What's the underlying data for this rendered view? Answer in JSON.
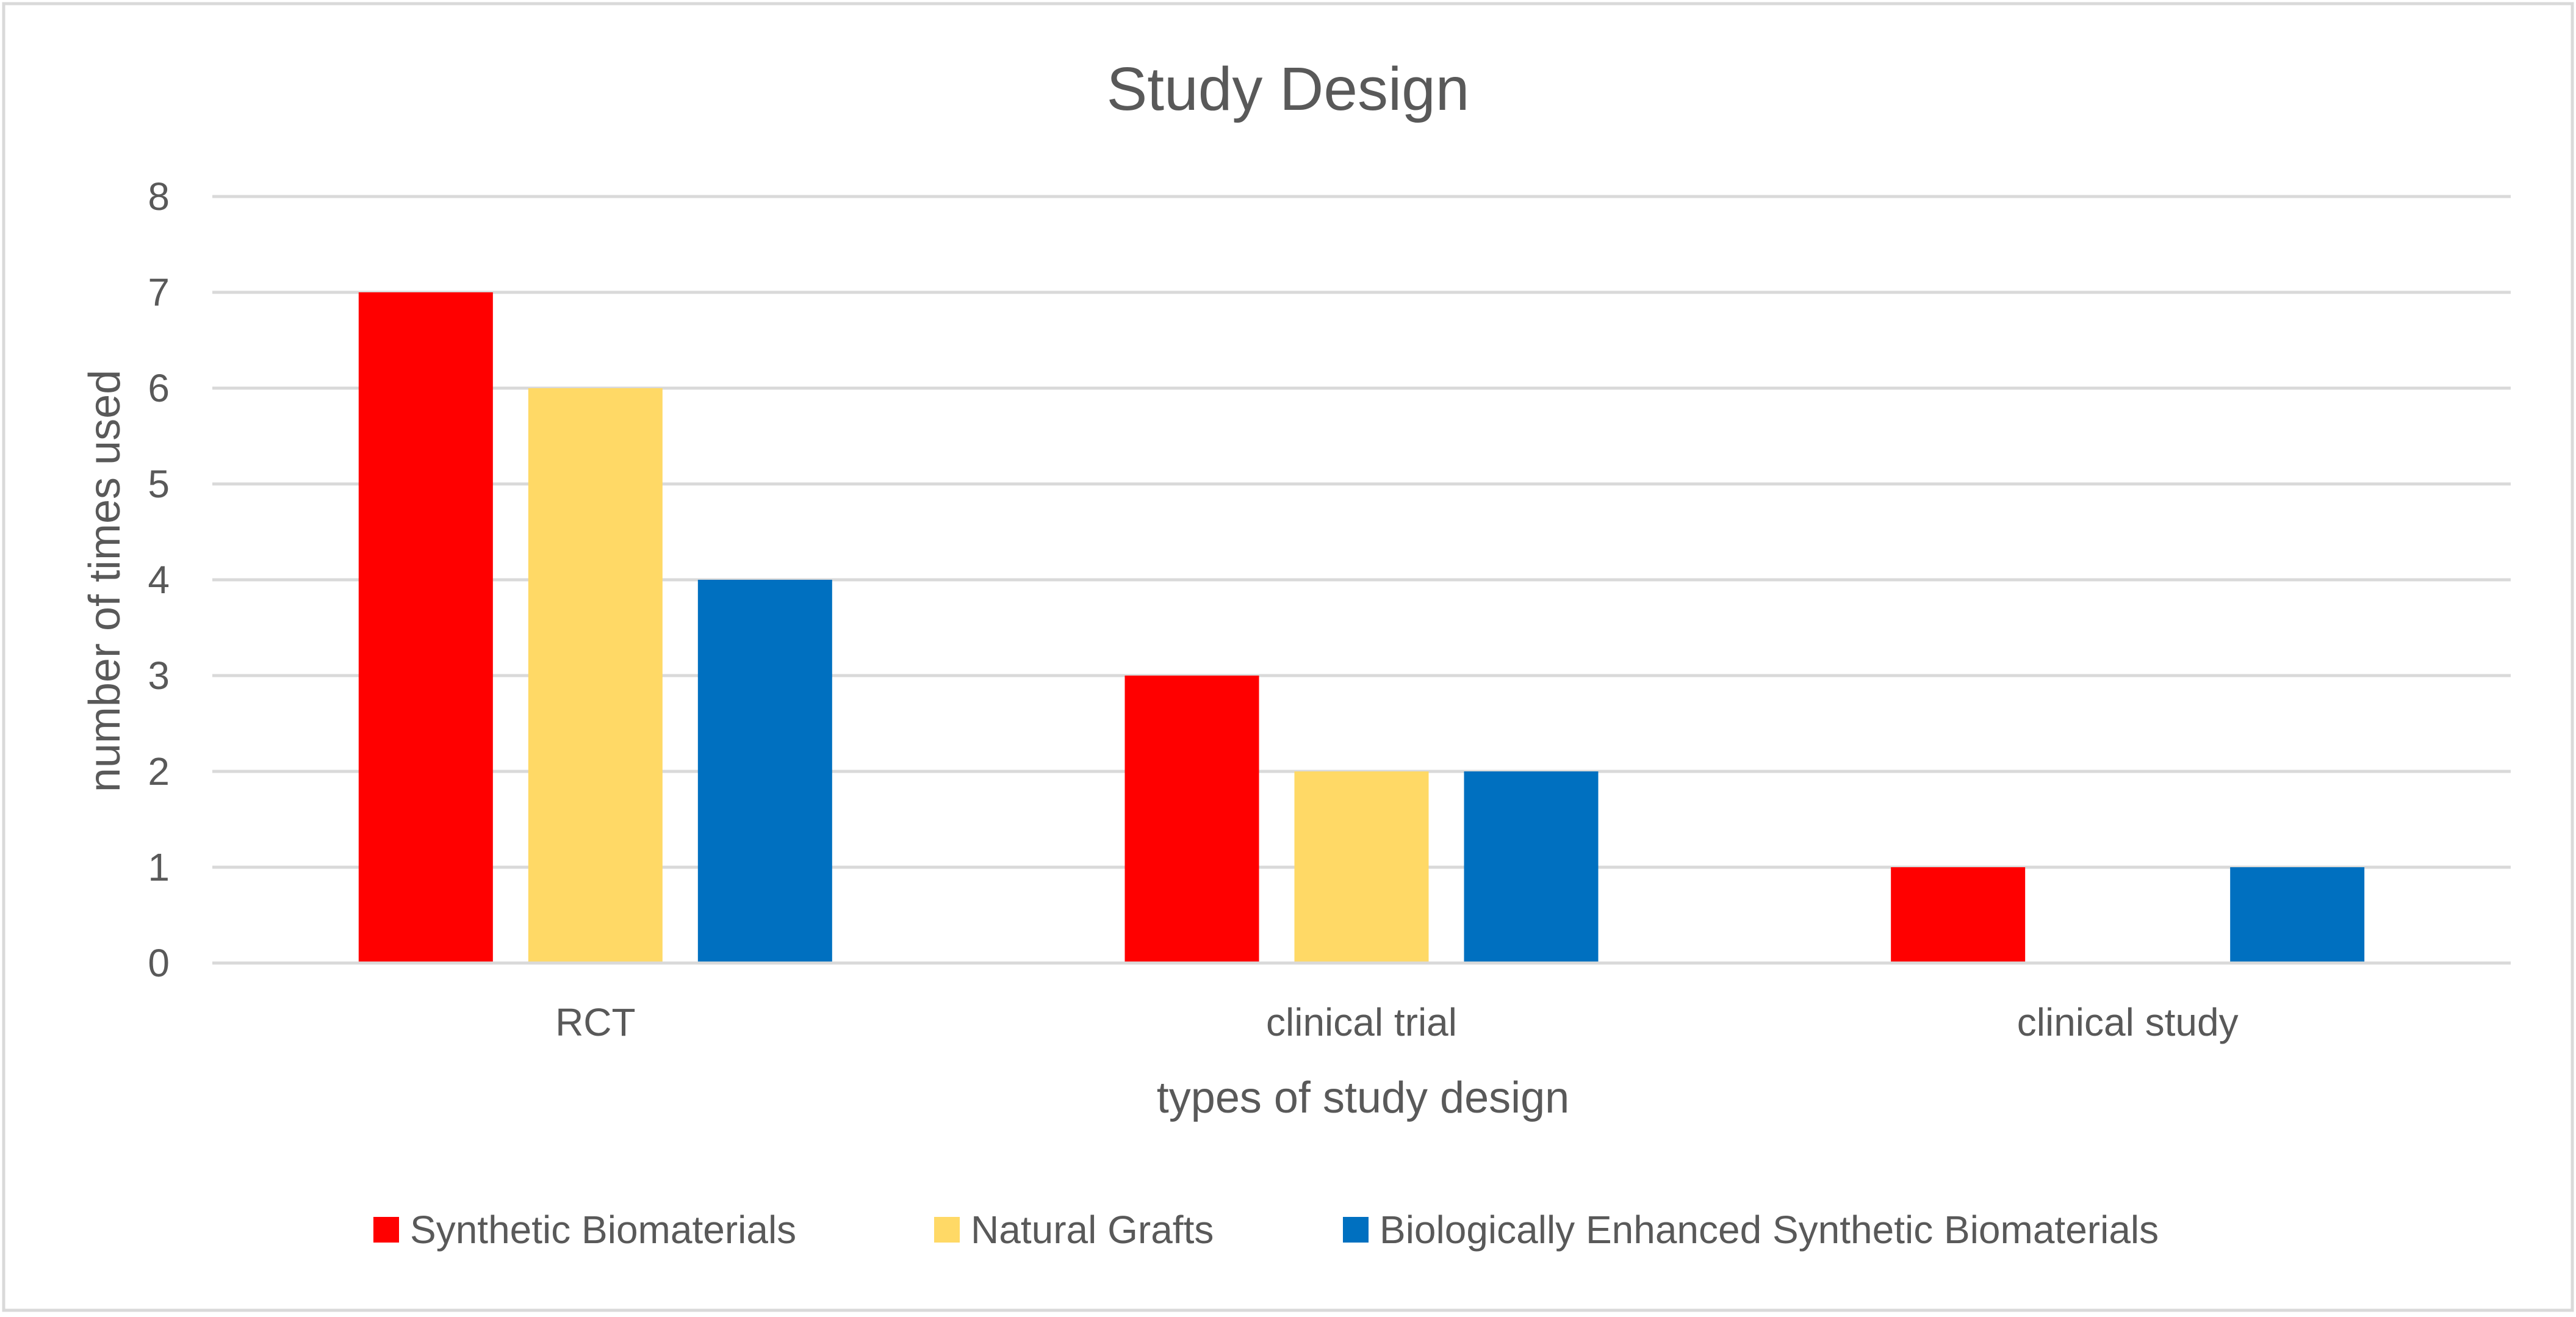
{
  "chart_data": {
    "type": "bar",
    "title": "Study Design",
    "xlabel": "types of study design",
    "ylabel": "number of times used",
    "categories": [
      "RCT",
      "clinical trial",
      "clinical study"
    ],
    "series": [
      {
        "name": "Synthetic Biomaterials",
        "color": "#ff0000",
        "values": [
          7,
          3,
          1
        ]
      },
      {
        "name": "Natural Grafts",
        "color": "#ffd966",
        "values": [
          6,
          2,
          0
        ]
      },
      {
        "name": "Biologically Enhanced Synthetic Biomaterials",
        "color": "#0070c0",
        "values": [
          4,
          2,
          1
        ]
      }
    ],
    "ylim": [
      0,
      8
    ],
    "yticks": [
      "0",
      "1",
      "2",
      "3",
      "4",
      "5",
      "6",
      "7",
      "8"
    ],
    "grid": true,
    "legend_position": "bottom"
  }
}
